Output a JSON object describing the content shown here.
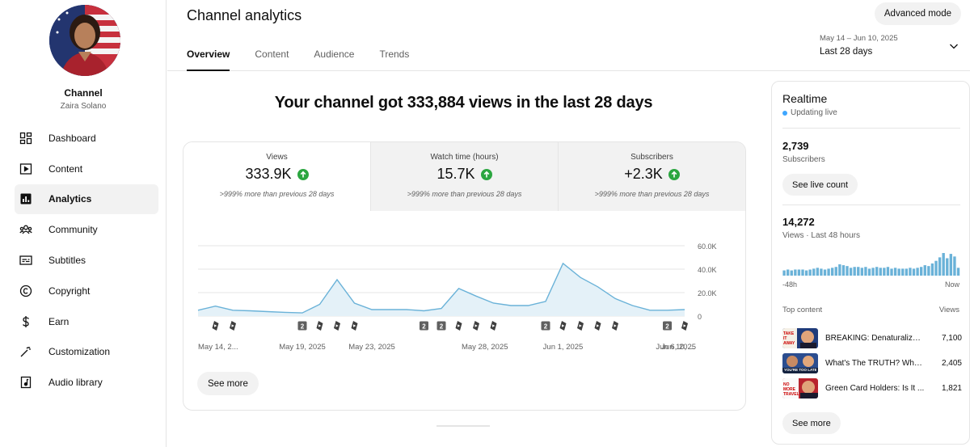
{
  "sidebar": {
    "channel_label": "Channel",
    "channel_name": "Zaira Solano",
    "items": [
      {
        "label": "Dashboard",
        "icon": "dashboard-icon"
      },
      {
        "label": "Content",
        "icon": "content-icon"
      },
      {
        "label": "Analytics",
        "icon": "analytics-icon",
        "active": true
      },
      {
        "label": "Community",
        "icon": "community-icon"
      },
      {
        "label": "Subtitles",
        "icon": "subtitles-icon"
      },
      {
        "label": "Copyright",
        "icon": "copyright-icon"
      },
      {
        "label": "Earn",
        "icon": "earn-icon"
      },
      {
        "label": "Customization",
        "icon": "customization-icon"
      },
      {
        "label": "Audio library",
        "icon": "audio-library-icon"
      }
    ]
  },
  "header": {
    "title": "Channel analytics",
    "advanced_mode": "Advanced mode",
    "tabs": [
      "Overview",
      "Content",
      "Audience",
      "Trends"
    ],
    "date_range": "May 14 – Jun 10, 2025",
    "date_label": "Last 28 days"
  },
  "main": {
    "headline": "Your channel got 333,884 views in the last 28 days",
    "metrics": [
      {
        "label": "Views",
        "value": "333.9K",
        "compare": ">999% more than previous 28 days"
      },
      {
        "label": "Watch time (hours)",
        "value": "15.7K",
        "compare": ">999% more than previous 28 days"
      },
      {
        "label": "Subscribers",
        "value": "+2.3K",
        "compare": ">999% more than previous 28 days"
      }
    ],
    "see_more": "See more"
  },
  "chart_data": {
    "type": "area",
    "series": [
      {
        "values": [
          5000,
          8500,
          5000,
          4500,
          3800,
          3200,
          2700,
          10000,
          31000,
          11000,
          5500,
          5500,
          5500,
          4500,
          6500,
          23500,
          17000,
          11000,
          9000,
          9000,
          12500,
          45000,
          33000,
          25000,
          15000,
          9000,
          5000,
          5000,
          5500
        ]
      }
    ],
    "y_ticks": [
      "60.0K",
      "40.0K",
      "20.0K",
      "0"
    ],
    "ylim": [
      0,
      60000
    ],
    "x_ticks": [
      "May 14, 2...",
      "May 19, 2025",
      "May 23, 2025",
      "May 28, 2025",
      "Jun 1, 2025",
      "Jun 6, 2025",
      "Jun 10, ..."
    ],
    "markers": [
      {
        "i": 1,
        "type": "short"
      },
      {
        "i": 2,
        "type": "short"
      },
      {
        "i": 6,
        "type": "video",
        "label": "2"
      },
      {
        "i": 7,
        "type": "short"
      },
      {
        "i": 8,
        "type": "short"
      },
      {
        "i": 9,
        "type": "short"
      },
      {
        "i": 13,
        "type": "video",
        "label": "2"
      },
      {
        "i": 14,
        "type": "video",
        "label": "2"
      },
      {
        "i": 15,
        "type": "short"
      },
      {
        "i": 16,
        "type": "short"
      },
      {
        "i": 17,
        "type": "short"
      },
      {
        "i": 20,
        "type": "video",
        "label": "2"
      },
      {
        "i": 21,
        "type": "short"
      },
      {
        "i": 22,
        "type": "short"
      },
      {
        "i": 23,
        "type": "short"
      },
      {
        "i": 24,
        "type": "short"
      },
      {
        "i": 27,
        "type": "video",
        "label": "2"
      },
      {
        "i": 28,
        "type": "short"
      }
    ],
    "colors": {
      "line": "#6ab2d8",
      "fill": "#e4f1f8",
      "grid": "#e5e5e5"
    }
  },
  "realtime": {
    "title": "Realtime",
    "live": "Updating live",
    "subscribers_value": "2,739",
    "subscribers_label": "Subscribers",
    "see_live_count": "See live count",
    "views_value": "14,272",
    "views_label": "Views · Last 48 hours",
    "bars": [
      6,
      7,
      6,
      7,
      7,
      7,
      6,
      7,
      8,
      9,
      8,
      7,
      8,
      9,
      10,
      13,
      12,
      11,
      9,
      10,
      10,
      9,
      10,
      8,
      9,
      10,
      9,
      9,
      10,
      8,
      9,
      8,
      8,
      8,
      9,
      8,
      9,
      10,
      12,
      11,
      14,
      17,
      21,
      26,
      20,
      25,
      22,
      9
    ],
    "axis_left": "-48h",
    "axis_right": "Now",
    "top_content_label": "Top content",
    "views_col": "Views",
    "top_content": [
      {
        "title": "BREAKING: Denaturalizat...",
        "views": "7,100"
      },
      {
        "title": "What's The TRUTH? Whe...",
        "views": "2,405"
      },
      {
        "title": "Green Card Holders: Is It ...",
        "views": "1,821"
      }
    ],
    "thumb_texts": [
      "TAKE IT AWAY",
      "YOU'RE TOO LATE",
      "NO MORE TRAVEL"
    ],
    "see_more": "See more"
  }
}
